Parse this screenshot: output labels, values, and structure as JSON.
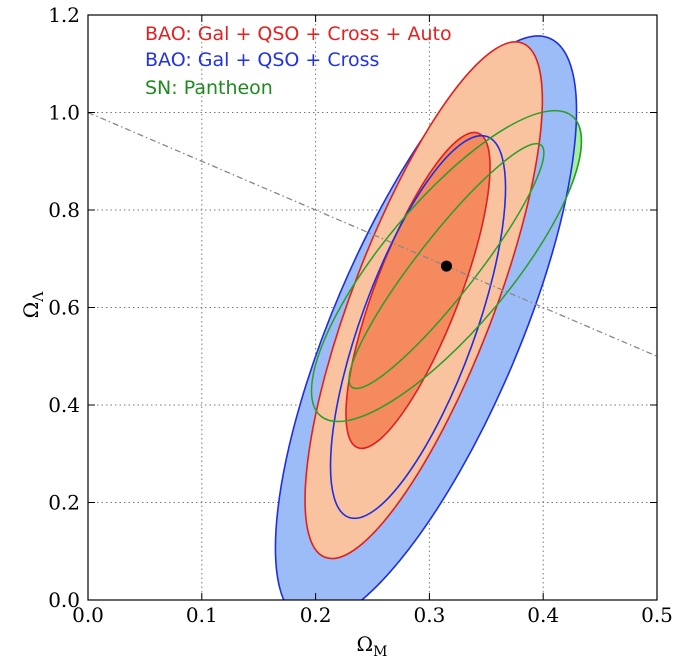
{
  "chart_data": {
    "type": "scatter",
    "xlim": [
      0.0,
      0.5
    ],
    "ylim": [
      0.0,
      1.2
    ],
    "xticks": [
      "0.0",
      "0.1",
      "0.2",
      "0.3",
      "0.4",
      "0.5"
    ],
    "yticks": [
      "0.0",
      "0.2",
      "0.4",
      "0.6",
      "0.8",
      "1.0",
      "1.2"
    ],
    "xlabel": "Ω",
    "xlabel_sub": "M",
    "ylabel": "Ω",
    "ylabel_sub": "Λ",
    "grid": true,
    "legend_position": "top-left",
    "flat_line": {
      "points": [
        [
          0.0,
          1.0
        ],
        [
          0.5,
          0.5
        ]
      ],
      "color": "#888888"
    },
    "best_fit": {
      "x": 0.315,
      "y": 0.685,
      "color": "#000000"
    },
    "series": [
      {
        "name": "SN: Pantheon",
        "color": "#2a9d2a",
        "label_color": "#1f8a1f",
        "fill_outer": "#a3ef9e",
        "fill_inner": "#58df58",
        "outer": {
          "cx": 0.315,
          "cy": 0.685,
          "rx": 0.172,
          "ry": 0.056,
          "angle_deg": 50
        },
        "inner": {
          "cx": 0.315,
          "cy": 0.685,
          "rx": 0.135,
          "ry": 0.026,
          "angle_deg": 52
        }
      },
      {
        "name": "BAO: Gal + QSO + Cross",
        "color": "#1f2ee0",
        "label_color": "#2233e0",
        "fill_outer": "#9bbcf6",
        "outer": {
          "cx": 0.297,
          "cy": 0.555,
          "rx": 0.278,
          "ry": 0.082,
          "angle_deg": 67
        },
        "inner": {
          "cx": 0.29,
          "cy": 0.56,
          "rx": 0.178,
          "ry": 0.05,
          "angle_deg": 70
        }
      },
      {
        "name": "BAO: Gal + QSO + Cross + Auto",
        "color": "#e02020",
        "label_color": "#e52020",
        "fill_outer": "#f8c39e",
        "fill_inner": "#f48a5e",
        "outer": {
          "cx": 0.295,
          "cy": 0.615,
          "rx": 0.242,
          "ry": 0.062,
          "angle_deg": 69
        },
        "inner": {
          "cx": 0.29,
          "cy": 0.635,
          "rx": 0.148,
          "ry": 0.037,
          "angle_deg": 69
        }
      }
    ]
  }
}
